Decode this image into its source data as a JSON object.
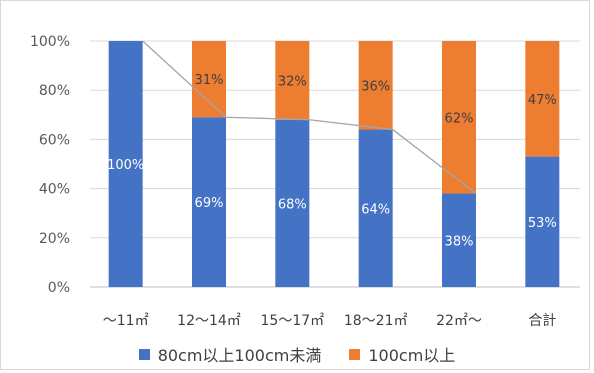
{
  "chart_data": {
    "type": "bar",
    "stacked": true,
    "percent": true,
    "categories": [
      "〜11㎡",
      "12〜14㎡",
      "15〜17㎡",
      "18〜21㎡",
      "22㎡〜",
      "合計"
    ],
    "series": [
      {
        "name": "80cm以上100cm未満",
        "color": "#4472C4",
        "values": [
          100,
          69,
          68,
          64,
          38,
          53
        ],
        "labels": [
          "100%",
          "69%",
          "68%",
          "64%",
          "38%",
          "53%"
        ]
      },
      {
        "name": "100cm以上",
        "color": "#ED7D31",
        "values": [
          0,
          31,
          32,
          36,
          62,
          47
        ],
        "labels": [
          "",
          "31%",
          "32%",
          "36%",
          "62%",
          "47%"
        ]
      }
    ],
    "connector_line": {
      "series": "80cm以上100cm未満",
      "color": "#a6a6a6",
      "categories": [
        "〜11㎡",
        "12〜14㎡",
        "15〜17㎡",
        "18〜21㎡",
        "22㎡〜"
      ]
    },
    "ylim": [
      0,
      100
    ],
    "yticks": [
      "0%",
      "20%",
      "40%",
      "60%",
      "80%",
      "100%"
    ],
    "grid": true,
    "legend": "bottom",
    "title": "",
    "xlabel": "",
    "ylabel": ""
  }
}
